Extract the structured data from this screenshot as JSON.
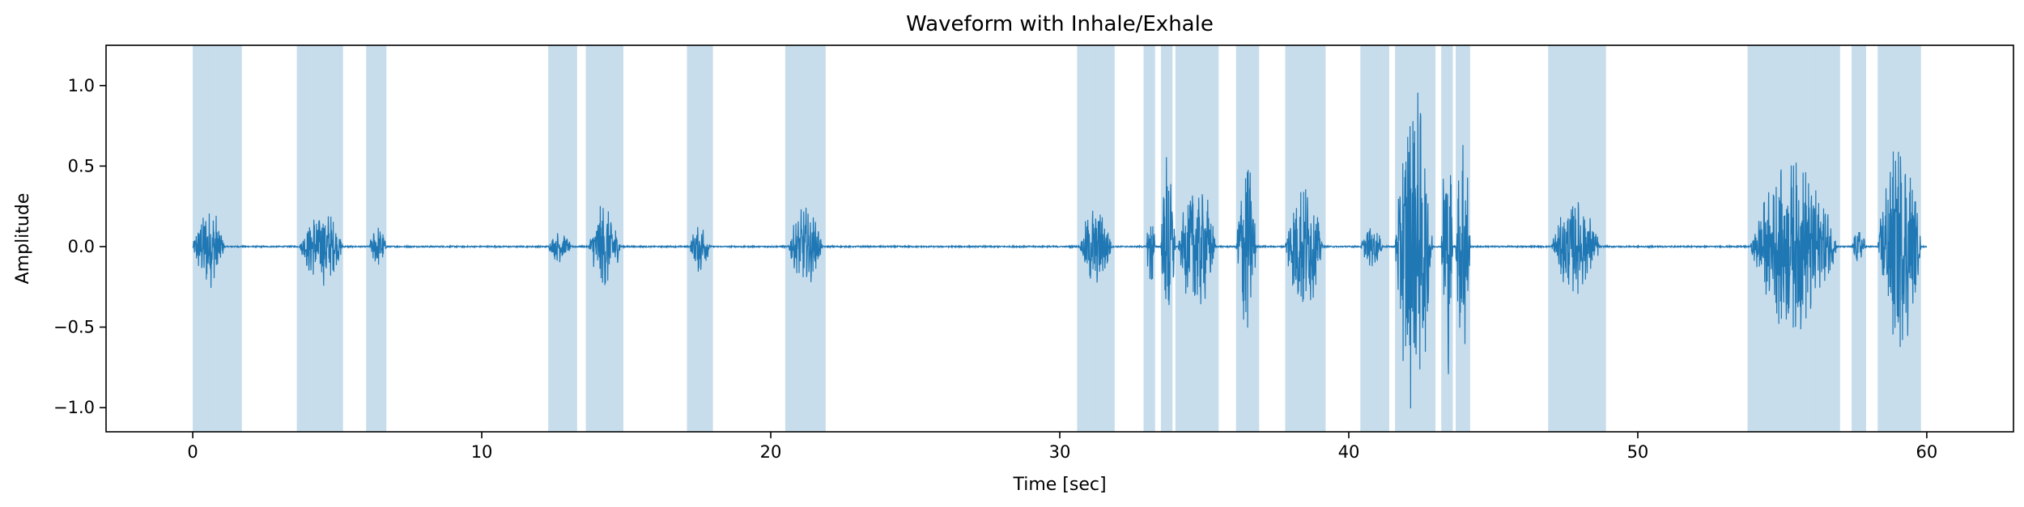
{
  "chart_data": {
    "type": "line",
    "title": "Waveform with Inhale/Exhale",
    "xlabel": "Time [sec]",
    "ylabel": "Amplitude",
    "xlim": [
      -3,
      63
    ],
    "ylim": [
      -1.15,
      1.25
    ],
    "xticks": [
      0,
      10,
      20,
      30,
      40,
      50,
      60
    ],
    "xtick_labels": [
      "0",
      "10",
      "20",
      "30",
      "40",
      "50",
      "60"
    ],
    "yticks": [
      -1.0,
      -0.5,
      0.0,
      0.5,
      1.0
    ],
    "ytick_labels": [
      "−1.0",
      "−0.5",
      "0.0",
      "0.5",
      "1.0"
    ],
    "grid": false,
    "line_color": "#1f77b4",
    "span_color": "#1f77b4",
    "phases": [
      {
        "start": 0.0,
        "end": 0.8
      },
      {
        "start": 0.8,
        "end": 1.7
      },
      {
        "start": 3.6,
        "end": 4.1
      },
      {
        "start": 4.1,
        "end": 5.2
      },
      {
        "start": 6.0,
        "end": 6.7
      },
      {
        "start": 12.3,
        "end": 12.6
      },
      {
        "start": 12.6,
        "end": 13.3
      },
      {
        "start": 13.6,
        "end": 14.4
      },
      {
        "start": 14.4,
        "end": 14.9
      },
      {
        "start": 17.1,
        "end": 17.5
      },
      {
        "start": 17.5,
        "end": 18.0
      },
      {
        "start": 20.5,
        "end": 21.2
      },
      {
        "start": 21.2,
        "end": 21.9
      },
      {
        "start": 30.6,
        "end": 31.0
      },
      {
        "start": 31.0,
        "end": 31.9
      },
      {
        "start": 32.9,
        "end": 33.3
      },
      {
        "start": 33.5,
        "end": 33.9
      },
      {
        "start": 34.0,
        "end": 34.5
      },
      {
        "start": 34.5,
        "end": 35.5
      },
      {
        "start": 36.1,
        "end": 36.5
      },
      {
        "start": 36.5,
        "end": 36.9
      },
      {
        "start": 37.8,
        "end": 38.1
      },
      {
        "start": 38.1,
        "end": 39.2
      },
      {
        "start": 40.4,
        "end": 41.2
      },
      {
        "start": 41.2,
        "end": 41.4
      },
      {
        "start": 41.6,
        "end": 42.1
      },
      {
        "start": 42.1,
        "end": 43.0
      },
      {
        "start": 43.2,
        "end": 43.6
      },
      {
        "start": 43.7,
        "end": 44.2
      },
      {
        "start": 46.9,
        "end": 48.3
      },
      {
        "start": 48.3,
        "end": 48.9
      },
      {
        "start": 53.8,
        "end": 55.9
      },
      {
        "start": 55.9,
        "end": 57.0
      },
      {
        "start": 57.4,
        "end": 57.9
      },
      {
        "start": 58.3,
        "end": 58.6
      },
      {
        "start": 58.6,
        "end": 59.8
      }
    ],
    "bursts": [
      {
        "start": 0.0,
        "end": 1.1,
        "amp": 0.27
      },
      {
        "start": 3.7,
        "end": 5.2,
        "amp": 0.25
      },
      {
        "start": 6.1,
        "end": 6.7,
        "amp": 0.14
      },
      {
        "start": 12.3,
        "end": 13.1,
        "amp": 0.1
      },
      {
        "start": 13.7,
        "end": 14.8,
        "amp": 0.28
      },
      {
        "start": 17.2,
        "end": 17.9,
        "amp": 0.17
      },
      {
        "start": 20.6,
        "end": 21.8,
        "amp": 0.25
      },
      {
        "start": 30.7,
        "end": 31.8,
        "amp": 0.28
      },
      {
        "start": 33.0,
        "end": 33.3,
        "amp": 0.3
      },
      {
        "start": 33.5,
        "end": 34.0,
        "amp": 0.65
      },
      {
        "start": 34.1,
        "end": 35.4,
        "amp": 0.45
      },
      {
        "start": 36.1,
        "end": 36.8,
        "amp": 0.6
      },
      {
        "start": 37.8,
        "end": 39.1,
        "amp": 0.45
      },
      {
        "start": 40.4,
        "end": 41.2,
        "amp": 0.13
      },
      {
        "start": 41.6,
        "end": 42.9,
        "amp": 1.05
      },
      {
        "start": 43.2,
        "end": 43.6,
        "amp": 0.85
      },
      {
        "start": 43.7,
        "end": 44.2,
        "amp": 0.85
      },
      {
        "start": 47.0,
        "end": 48.7,
        "amp": 0.3
      },
      {
        "start": 53.9,
        "end": 56.9,
        "amp": 0.55
      },
      {
        "start": 57.4,
        "end": 57.9,
        "amp": 0.12
      },
      {
        "start": 58.3,
        "end": 59.8,
        "amp": 0.7
      }
    ]
  }
}
